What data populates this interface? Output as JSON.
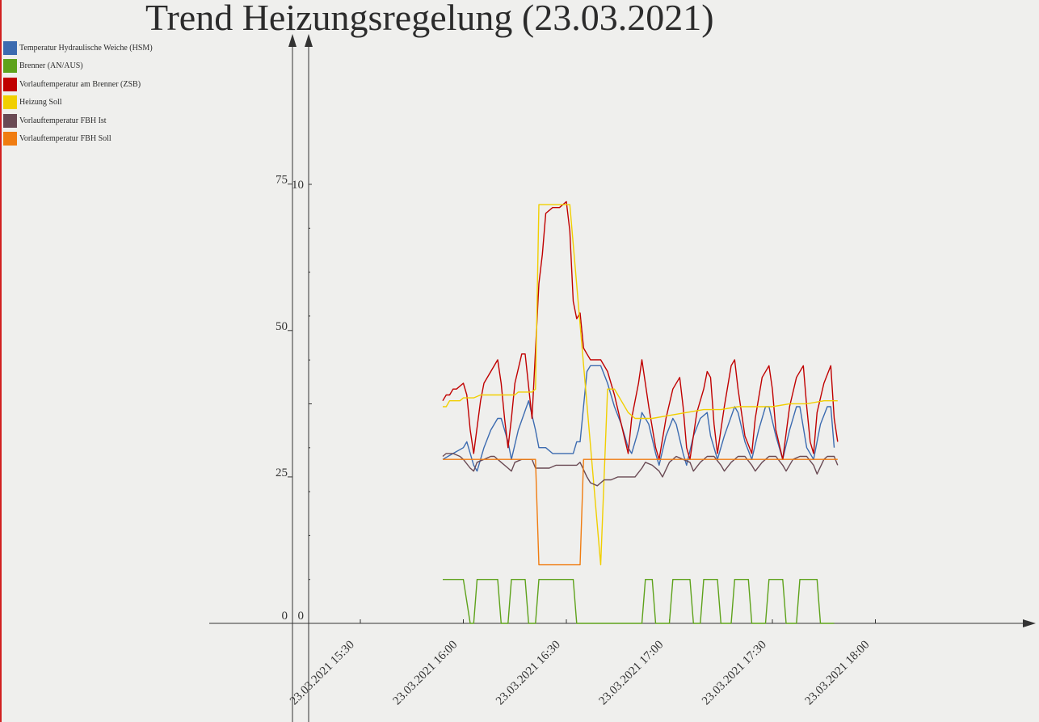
{
  "chart_data": {
    "type": "line",
    "title": "Trend Heizungsregelung (23.03.2021)",
    "xlabel": "",
    "ylabel": "",
    "left_axis": {
      "ticks": [
        0,
        25,
        50,
        75
      ],
      "tick_labels": [
        "0",
        "25",
        "50",
        "75"
      ],
      "range": [
        -17,
        100
      ]
    },
    "right_axis": {
      "ticks": [
        0,
        10
      ],
      "tick_labels": [
        "0",
        "10"
      ],
      "range": [
        -1.6,
        13
      ]
    },
    "x_axis": {
      "ticks": [
        "15:30",
        "16:00",
        "16:30",
        "17:00",
        "17:30",
        "18:00"
      ],
      "tick_labels": [
        "23.03.2021 15:30",
        "23.03.2021 16:00",
        "23.03.2021 16:30",
        "23.03.2021 17:00",
        "23.03.2021 17:30",
        "23.03.2021 18:00"
      ],
      "range": [
        "14:46",
        "18:20"
      ]
    },
    "legend_position": "top-left",
    "grid": false,
    "series": [
      {
        "name": "Temperatur Hydraulische Weiche (HSM)",
        "color": "#3c6bb0",
        "axis": "left",
        "points": [
          [
            "15:54",
            28
          ],
          [
            "15:57",
            29
          ],
          [
            "16:00",
            30
          ],
          [
            "16:01",
            31
          ],
          [
            "16:03",
            27
          ],
          [
            "16:04",
            26
          ],
          [
            "16:06",
            30
          ],
          [
            "16:08",
            33
          ],
          [
            "16:10",
            35
          ],
          [
            "16:11",
            35
          ],
          [
            "16:13",
            31
          ],
          [
            "16:14",
            28
          ],
          [
            "16:16",
            33
          ],
          [
            "16:19",
            38
          ],
          [
            "16:21",
            33
          ],
          [
            "16:22",
            30
          ],
          [
            "16:24",
            30
          ],
          [
            "16:26",
            29
          ],
          [
            "16:28",
            29
          ],
          [
            "16:31",
            29
          ],
          [
            "16:32",
            29
          ],
          [
            "16:33",
            31
          ],
          [
            "16:34",
            31
          ],
          [
            "16:36",
            43
          ],
          [
            "16:37",
            44
          ],
          [
            "16:40",
            44
          ],
          [
            "16:42",
            41
          ],
          [
            "16:44",
            37
          ],
          [
            "16:46",
            34
          ],
          [
            "16:48",
            30
          ],
          [
            "16:49",
            29
          ],
          [
            "16:51",
            33
          ],
          [
            "16:52",
            36
          ],
          [
            "16:54",
            34
          ],
          [
            "16:56",
            29
          ],
          [
            "16:57",
            27
          ],
          [
            "16:59",
            32
          ],
          [
            "17:01",
            35
          ],
          [
            "17:02",
            34
          ],
          [
            "17:04",
            29
          ],
          [
            "17:05",
            27
          ],
          [
            "17:07",
            32
          ],
          [
            "17:09",
            35
          ],
          [
            "17:11",
            36
          ],
          [
            "17:12",
            32
          ],
          [
            "17:14",
            28
          ],
          [
            "17:16",
            32
          ],
          [
            "17:19",
            37
          ],
          [
            "17:20",
            36
          ],
          [
            "17:22",
            31
          ],
          [
            "17:24",
            28
          ],
          [
            "17:26",
            33
          ],
          [
            "17:28",
            37
          ],
          [
            "17:29",
            37
          ],
          [
            "17:31",
            32
          ],
          [
            "17:33",
            28
          ],
          [
            "17:35",
            33
          ],
          [
            "17:37",
            37
          ],
          [
            "17:38",
            37
          ],
          [
            "17:40",
            30
          ],
          [
            "17:42",
            28
          ],
          [
            "17:44",
            34
          ],
          [
            "17:46",
            37
          ],
          [
            "17:47",
            37
          ],
          [
            "17:48",
            30
          ]
        ]
      },
      {
        "name": "Brenner (AN/AUS)",
        "color": "#5ea21b",
        "axis": "right",
        "points": [
          [
            "15:54",
            1
          ],
          [
            "16:00",
            1
          ],
          [
            "16:02",
            0
          ],
          [
            "16:03",
            0
          ],
          [
            "16:04",
            1
          ],
          [
            "16:10",
            1
          ],
          [
            "16:11",
            0
          ],
          [
            "16:13",
            0
          ],
          [
            "16:14",
            1
          ],
          [
            "16:18",
            1
          ],
          [
            "16:19",
            0
          ],
          [
            "16:21",
            0
          ],
          [
            "16:22",
            1
          ],
          [
            "16:32",
            1
          ],
          [
            "16:33",
            0
          ],
          [
            "16:52",
            0
          ],
          [
            "16:53",
            1
          ],
          [
            "16:55",
            1
          ],
          [
            "16:56",
            0
          ],
          [
            "17:00",
            0
          ],
          [
            "17:01",
            1
          ],
          [
            "17:06",
            1
          ],
          [
            "17:07",
            0
          ],
          [
            "17:09",
            0
          ],
          [
            "17:10",
            1
          ],
          [
            "17:14",
            1
          ],
          [
            "17:15",
            0
          ],
          [
            "17:18",
            0
          ],
          [
            "17:19",
            1
          ],
          [
            "17:23",
            1
          ],
          [
            "17:24",
            0
          ],
          [
            "17:28",
            0
          ],
          [
            "17:29",
            1
          ],
          [
            "17:33",
            1
          ],
          [
            "17:34",
            0
          ],
          [
            "17:37",
            0
          ],
          [
            "17:38",
            1
          ],
          [
            "17:43",
            1
          ],
          [
            "17:44",
            0
          ],
          [
            "17:48",
            0
          ]
        ]
      },
      {
        "name": "Vorlauftemperatur am Brenner (ZSB)",
        "color": "#c00000",
        "axis": "left",
        "points": [
          [
            "15:54",
            38
          ],
          [
            "15:55",
            39
          ],
          [
            "15:56",
            39
          ],
          [
            "15:57",
            40
          ],
          [
            "15:58",
            40
          ],
          [
            "16:00",
            41
          ],
          [
            "16:01",
            39
          ],
          [
            "16:02",
            33
          ],
          [
            "16:03",
            29
          ],
          [
            "16:05",
            38
          ],
          [
            "16:06",
            41
          ],
          [
            "16:08",
            43
          ],
          [
            "16:10",
            45
          ],
          [
            "16:11",
            41
          ],
          [
            "16:12",
            35
          ],
          [
            "16:13",
            30
          ],
          [
            "16:14",
            35
          ],
          [
            "16:15",
            41
          ],
          [
            "16:17",
            46
          ],
          [
            "16:18",
            46
          ],
          [
            "16:20",
            35
          ],
          [
            "16:22",
            58
          ],
          [
            "16:23",
            63
          ],
          [
            "16:24",
            70
          ],
          [
            "16:26",
            71
          ],
          [
            "16:28",
            71
          ],
          [
            "16:30",
            72
          ],
          [
            "16:31",
            67
          ],
          [
            "16:32",
            55
          ],
          [
            "16:33",
            52
          ],
          [
            "16:34",
            53
          ],
          [
            "16:35",
            47
          ],
          [
            "16:36",
            46
          ],
          [
            "16:37",
            45
          ],
          [
            "16:40",
            45
          ],
          [
            "16:42",
            43
          ],
          [
            "16:44",
            39
          ],
          [
            "16:46",
            34
          ],
          [
            "16:48",
            29
          ],
          [
            "16:49",
            35
          ],
          [
            "16:51",
            41
          ],
          [
            "16:52",
            45
          ],
          [
            "16:54",
            37
          ],
          [
            "16:56",
            30
          ],
          [
            "16:57",
            28
          ],
          [
            "16:59",
            35
          ],
          [
            "17:01",
            40
          ],
          [
            "17:03",
            42
          ],
          [
            "17:04",
            37
          ],
          [
            "17:05",
            30
          ],
          [
            "17:06",
            28
          ],
          [
            "17:08",
            36
          ],
          [
            "17:10",
            40
          ],
          [
            "17:11",
            43
          ],
          [
            "17:12",
            42
          ],
          [
            "17:13",
            34
          ],
          [
            "17:14",
            29
          ],
          [
            "17:16",
            37
          ],
          [
            "17:18",
            44
          ],
          [
            "17:19",
            45
          ],
          [
            "17:20",
            40
          ],
          [
            "17:22",
            32
          ],
          [
            "17:24",
            29
          ],
          [
            "17:25",
            35
          ],
          [
            "17:27",
            42
          ],
          [
            "17:29",
            44
          ],
          [
            "17:30",
            40
          ],
          [
            "17:31",
            33
          ],
          [
            "17:33",
            28
          ],
          [
            "17:35",
            37
          ],
          [
            "17:37",
            42
          ],
          [
            "17:39",
            44
          ],
          [
            "17:40",
            37
          ],
          [
            "17:41",
            31
          ],
          [
            "17:42",
            29
          ],
          [
            "17:43",
            36
          ],
          [
            "17:45",
            41
          ],
          [
            "17:47",
            44
          ],
          [
            "17:48",
            35
          ],
          [
            "17:49",
            31
          ]
        ]
      },
      {
        "name": "Heizung Soll",
        "color": "#f1cf00",
        "axis": "left",
        "points": [
          [
            "15:54",
            37
          ],
          [
            "15:55",
            37
          ],
          [
            "15:56",
            38
          ],
          [
            "15:58",
            38
          ],
          [
            "15:59",
            38
          ],
          [
            "16:00",
            38.5
          ],
          [
            "16:03",
            38.5
          ],
          [
            "16:05",
            39
          ],
          [
            "16:15",
            39
          ],
          [
            "16:16",
            39.5
          ],
          [
            "16:20",
            39.5
          ],
          [
            "16:21",
            40
          ],
          [
            "16:22",
            71.5
          ],
          [
            "16:31",
            71.5
          ],
          [
            "16:40",
            10
          ],
          [
            "16:42",
            40
          ],
          [
            "16:44",
            40
          ],
          [
            "16:46",
            38
          ],
          [
            "16:48",
            36
          ],
          [
            "16:50",
            35
          ],
          [
            "16:55",
            35
          ],
          [
            "17:00",
            35.5
          ],
          [
            "17:05",
            36
          ],
          [
            "17:10",
            36.5
          ],
          [
            "17:15",
            36.5
          ],
          [
            "17:20",
            37
          ],
          [
            "17:25",
            37
          ],
          [
            "17:30",
            37
          ],
          [
            "17:35",
            37.5
          ],
          [
            "17:40",
            37.5
          ],
          [
            "17:45",
            38
          ],
          [
            "17:49",
            38
          ]
        ]
      },
      {
        "name": "Vorlauftemperatur FBH Ist",
        "color": "#6a4a54",
        "axis": "left",
        "points": [
          [
            "15:54",
            28.5
          ],
          [
            "15:55",
            29
          ],
          [
            "15:57",
            29
          ],
          [
            "15:59",
            28.5
          ],
          [
            "16:00",
            28
          ],
          [
            "16:02",
            26.5
          ],
          [
            "16:03",
            26
          ],
          [
            "16:04",
            27.5
          ],
          [
            "16:06",
            28
          ],
          [
            "16:08",
            28.5
          ],
          [
            "16:09",
            28.5
          ],
          [
            "16:11",
            27.5
          ],
          [
            "16:13",
            26.5
          ],
          [
            "16:14",
            26
          ],
          [
            "16:15",
            27.5
          ],
          [
            "16:17",
            28
          ],
          [
            "16:19",
            28
          ],
          [
            "16:20",
            28
          ],
          [
            "16:21",
            26.5
          ],
          [
            "16:23",
            26.5
          ],
          [
            "16:25",
            26.5
          ],
          [
            "16:27",
            27
          ],
          [
            "16:31",
            27
          ],
          [
            "16:33",
            27
          ],
          [
            "16:34",
            27.5
          ],
          [
            "16:36",
            25
          ],
          [
            "16:37",
            24
          ],
          [
            "16:39",
            23.5
          ],
          [
            "16:41",
            24.5
          ],
          [
            "16:43",
            24.5
          ],
          [
            "16:45",
            25
          ],
          [
            "16:49",
            25
          ],
          [
            "16:50",
            25
          ],
          [
            "16:52",
            26.5
          ],
          [
            "16:53",
            27.5
          ],
          [
            "16:55",
            27
          ],
          [
            "16:57",
            26
          ],
          [
            "16:58",
            25
          ],
          [
            "17:00",
            27.5
          ],
          [
            "17:02",
            28.5
          ],
          [
            "17:04",
            28
          ],
          [
            "17:06",
            27.5
          ],
          [
            "17:07",
            26
          ],
          [
            "17:09",
            27.5
          ],
          [
            "17:11",
            28.5
          ],
          [
            "17:13",
            28.5
          ],
          [
            "17:15",
            27
          ],
          [
            "17:16",
            26
          ],
          [
            "17:18",
            27.5
          ],
          [
            "17:20",
            28.5
          ],
          [
            "17:22",
            28.5
          ],
          [
            "17:24",
            27
          ],
          [
            "17:25",
            26
          ],
          [
            "17:27",
            27.5
          ],
          [
            "17:29",
            28.5
          ],
          [
            "17:31",
            28.5
          ],
          [
            "17:33",
            27
          ],
          [
            "17:34",
            26
          ],
          [
            "17:36",
            28
          ],
          [
            "17:38",
            28.5
          ],
          [
            "17:40",
            28.5
          ],
          [
            "17:42",
            27
          ],
          [
            "17:43",
            25.5
          ],
          [
            "17:45",
            28
          ],
          [
            "17:46",
            28.5
          ],
          [
            "17:48",
            28.5
          ],
          [
            "17:49",
            27
          ]
        ]
      },
      {
        "name": "Vorlauftemperatur FBH Soll",
        "color": "#f07c10",
        "axis": "left",
        "points": [
          [
            "15:54",
            28
          ],
          [
            "16:21",
            28
          ],
          [
            "16:22",
            10
          ],
          [
            "16:34",
            10
          ],
          [
            "16:35",
            28
          ],
          [
            "17:49",
            28
          ]
        ]
      }
    ]
  }
}
